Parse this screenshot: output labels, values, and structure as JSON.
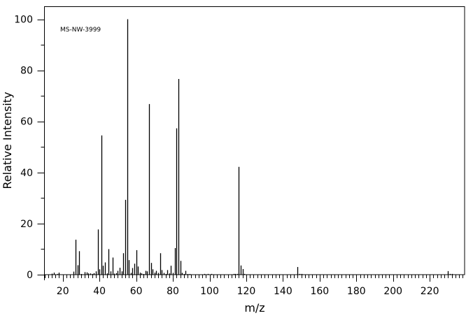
{
  "chart_data": {
    "type": "bar",
    "subtype": "mass-spectrum-sticks",
    "annotation": "MS-NW-3999",
    "xlabel": "m/z",
    "ylabel": "Relative Intensity",
    "xlim": [
      10,
      239
    ],
    "ylim": [
      0,
      100
    ],
    "xticks": [
      20,
      40,
      60,
      80,
      100,
      120,
      140,
      160,
      180,
      200,
      220
    ],
    "yticks": [
      0,
      20,
      40,
      60,
      80,
      100
    ],
    "grid": false,
    "color": "#000000",
    "peaks": [
      [
        14,
        0.4
      ],
      [
        15,
        0.8
      ],
      [
        17,
        0.3
      ],
      [
        18,
        0.8
      ],
      [
        26,
        1.2
      ],
      [
        27,
        13.7
      ],
      [
        28,
        3.7
      ],
      [
        29,
        9.2
      ],
      [
        30,
        0.2
      ],
      [
        32,
        1.0
      ],
      [
        33,
        0.9
      ],
      [
        34,
        0.5
      ],
      [
        35,
        0.5
      ],
      [
        36,
        0.3
      ],
      [
        37,
        0.6
      ],
      [
        38,
        1.3
      ],
      [
        39,
        17.7
      ],
      [
        40,
        2.1
      ],
      [
        41,
        54.5
      ],
      [
        42,
        3.5
      ],
      [
        43,
        4.8
      ],
      [
        44,
        0.5
      ],
      [
        45,
        10.0
      ],
      [
        46,
        1.3
      ],
      [
        47,
        6.7
      ],
      [
        48,
        0.4
      ],
      [
        49,
        0.6
      ],
      [
        50,
        1.5
      ],
      [
        51,
        2.7
      ],
      [
        52,
        1.3
      ],
      [
        53,
        8.4
      ],
      [
        54,
        29.3
      ],
      [
        55,
        100
      ],
      [
        56,
        5.7
      ],
      [
        57,
        0.7
      ],
      [
        58,
        2.6
      ],
      [
        59,
        4.3
      ],
      [
        60,
        9.6
      ],
      [
        61,
        3.2
      ],
      [
        62,
        0.8
      ],
      [
        63,
        0.5
      ],
      [
        64,
        0.2
      ],
      [
        65,
        1.5
      ],
      [
        66,
        1.3
      ],
      [
        67,
        66.8
      ],
      [
        68,
        4.6
      ],
      [
        69,
        2.1
      ],
      [
        70,
        0.8
      ],
      [
        71,
        1.5
      ],
      [
        72,
        0.7
      ],
      [
        73,
        8.4
      ],
      [
        74,
        1.8
      ],
      [
        75,
        0.7
      ],
      [
        76,
        0.2
      ],
      [
        77,
        1.8
      ],
      [
        78,
        0.5
      ],
      [
        79,
        3.5
      ],
      [
        80,
        0.7
      ],
      [
        81,
        10.4
      ],
      [
        82,
        57.3
      ],
      [
        83,
        76.6
      ],
      [
        84,
        5.4
      ],
      [
        85,
        0.7
      ],
      [
        86,
        0.2
      ],
      [
        87,
        1.5
      ],
      [
        88,
        0.2
      ],
      [
        89,
        0.2
      ],
      [
        97,
        0.3
      ],
      [
        99,
        0.3
      ],
      [
        101,
        0.3
      ],
      [
        113,
        0.3
      ],
      [
        114,
        0.3
      ],
      [
        115,
        0.3
      ],
      [
        116,
        42.2
      ],
      [
        117,
        3.6
      ],
      [
        118,
        2.2
      ],
      [
        119,
        0.3
      ],
      [
        148,
        3.0
      ],
      [
        149,
        0.3
      ],
      [
        150,
        0.3
      ],
      [
        230,
        1.4
      ],
      [
        231,
        0.3
      ],
      [
        232,
        0.3
      ]
    ]
  }
}
